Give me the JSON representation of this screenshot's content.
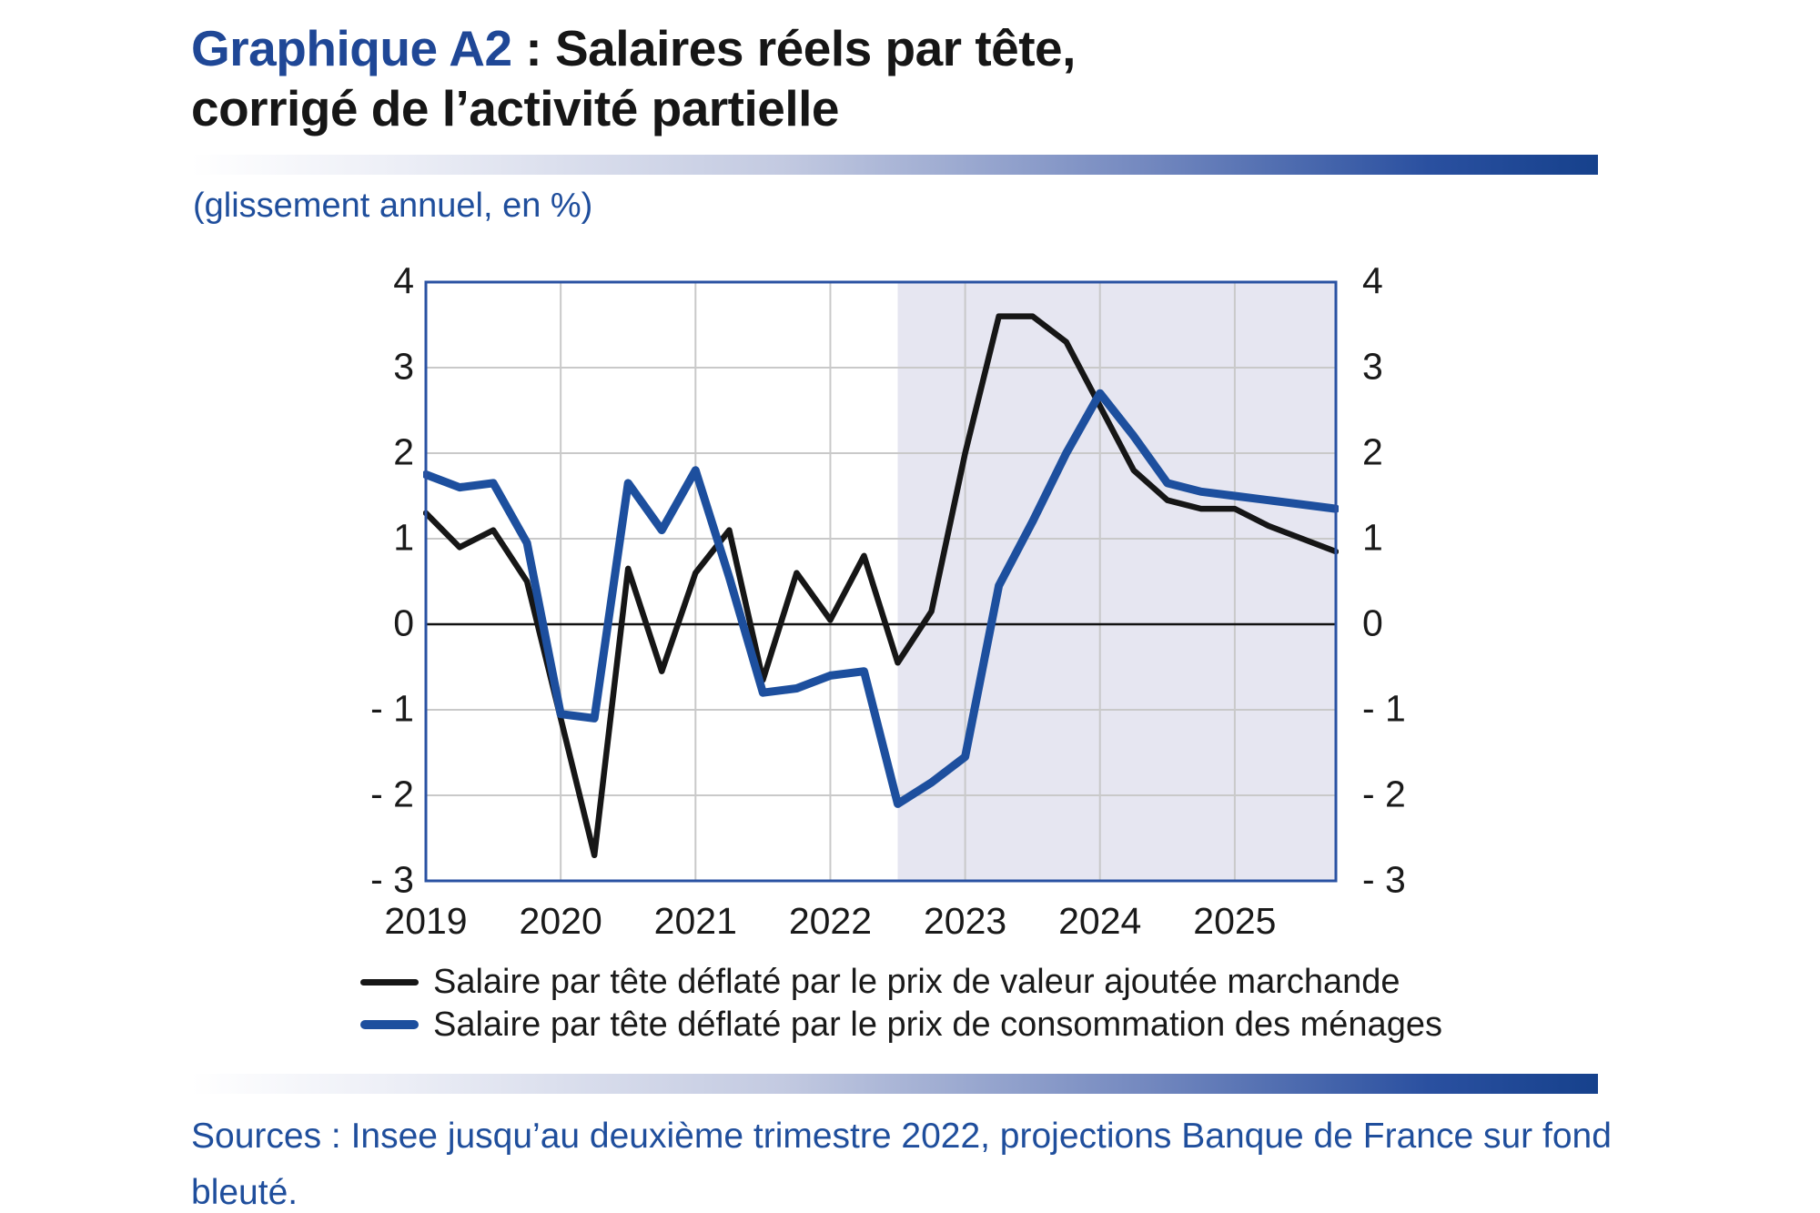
{
  "page": {
    "title": {
      "highlight": "Graphique A2",
      "rest_line1": " : Salaires réels par tête,",
      "line2": "corrigé de l’activité partielle"
    },
    "subtitle": "(glissement annuel, en %)",
    "sources": "Sources : Insee jusqu’au deuxième trimestre 2022, projections Banque de France sur fond bleuté."
  },
  "colors": {
    "title_highlight": "#1f4796",
    "text_blue": "#1f4e9c",
    "plot_border": "#2a52a2",
    "gridline": "#c9c9c9",
    "zero_line": "#111111",
    "projection_fill": "#e6e6f1"
  },
  "chart_data": {
    "type": "line",
    "title": "Salaires réels par tête, corrigé de l’activité partielle",
    "subtitle": "(glissement annuel, en %)",
    "x_unit": "quarter",
    "quarters": [
      "2019Q1",
      "2019Q2",
      "2019Q3",
      "2019Q4",
      "2020Q1",
      "2020Q2",
      "2020Q3",
      "2020Q4",
      "2021Q1",
      "2021Q2",
      "2021Q3",
      "2021Q4",
      "2022Q1",
      "2022Q2",
      "2022Q3",
      "2022Q4",
      "2023Q1",
      "2023Q2",
      "2023Q3",
      "2023Q4",
      "2024Q1",
      "2024Q2",
      "2024Q3",
      "2024Q4",
      "2025Q1",
      "2025Q2",
      "2025Q3",
      "2025Q4"
    ],
    "year_labels": [
      "2019",
      "2020",
      "2021",
      "2022",
      "2023",
      "2024",
      "2025"
    ],
    "year_tick_quarter_indices": [
      0,
      4,
      8,
      12,
      16,
      20,
      24
    ],
    "ylim": [
      -3,
      4
    ],
    "grid": true,
    "y_ticks": [
      {
        "label": "4",
        "value": 4
      },
      {
        "label": "3",
        "value": 3
      },
      {
        "label": "2",
        "value": 2
      },
      {
        "label": "1",
        "value": 1
      },
      {
        "label": "0",
        "value": 0
      },
      {
        "label": "- 1",
        "value": -1
      },
      {
        "label": "- 2",
        "value": -2
      },
      {
        "label": "- 3",
        "value": -3
      }
    ],
    "series": [
      {
        "name": "Salaire par tête déflaté par le prix de valeur ajoutée marchande",
        "color": "#161616",
        "stroke_width": 6.5,
        "values": [
          1.3,
          0.9,
          1.1,
          0.5,
          -1.1,
          -2.7,
          0.65,
          -0.55,
          0.6,
          1.1,
          -0.65,
          0.6,
          0.05,
          0.8,
          -0.45,
          0.15,
          2.0,
          3.6,
          3.6,
          3.3,
          2.55,
          1.8,
          1.45,
          1.35,
          1.35,
          1.15,
          1.0,
          0.85
        ]
      },
      {
        "name": "Salaire par tête déflaté par le prix de consommation des ménages",
        "color": "#1d4f9e",
        "stroke_width": 9,
        "values": [
          1.75,
          1.6,
          1.65,
          0.95,
          -1.05,
          -1.1,
          1.65,
          1.1,
          1.8,
          0.55,
          -0.8,
          -0.75,
          -0.6,
          -0.55,
          -2.1,
          -1.85,
          -1.55,
          0.45,
          1.2,
          2.0,
          2.7,
          2.2,
          1.65,
          1.55,
          1.5,
          1.45,
          1.4,
          1.35
        ]
      }
    ],
    "projection": {
      "start_quarter": "2022Q3",
      "start_index": 14,
      "fill": "#e6e6f1",
      "note": "projections Banque de France sur fond bleuté",
      "legend_position": "bottom"
    }
  }
}
